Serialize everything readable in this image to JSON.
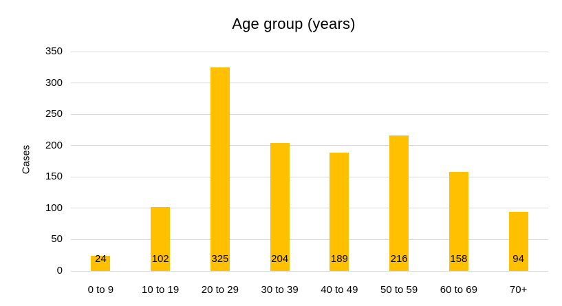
{
  "chart_data": {
    "type": "bar",
    "title": "Age group (years)",
    "xlabel": "",
    "ylabel": "Cases",
    "categories": [
      "0 to 9",
      "10 to 19",
      "20 to 29",
      "30 to 39",
      "40 to 49",
      "50 to 59",
      "60 to 69",
      "70+"
    ],
    "values": [
      24,
      102,
      325,
      204,
      189,
      216,
      158,
      94
    ],
    "data_labels": [
      "24",
      "102",
      "325",
      "204",
      "189",
      "216",
      "158",
      "94"
    ],
    "ylim": [
      0,
      350
    ],
    "yticks": [
      0,
      50,
      100,
      150,
      200,
      250,
      300,
      350
    ],
    "grid": "horizontal",
    "legend": "none",
    "data_label_position": "inside-base",
    "colors": {
      "bar": "#FFC000",
      "gridline": "#D9D9D9",
      "text": "#000000",
      "background": "#FFFFFF"
    }
  }
}
